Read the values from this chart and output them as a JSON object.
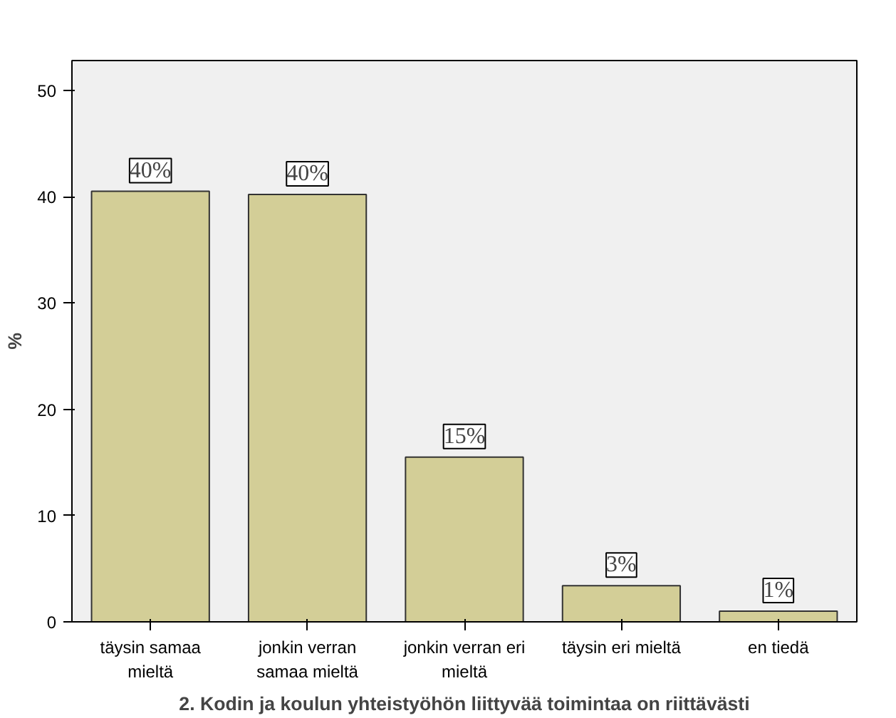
{
  "chart_data": {
    "type": "bar",
    "xlabel": "2. Kodin ja koulun yhteistyöhön liittyvää toimintaa on riittävästi",
    "ylabel": "%",
    "categories": [
      "täysin samaa mieltä",
      "jonkin verran samaa mieltä",
      "jonkin verran eri mieltä",
      "täysin eri mieltä",
      "en tiedä"
    ],
    "values": [
      40.5,
      40.2,
      15.5,
      3.4,
      1.0
    ],
    "value_labels": [
      "40%",
      "40%",
      "15%",
      "3%",
      "1%"
    ],
    "color": "#d3ce97",
    "ylim": [
      0,
      52.8
    ],
    "yticks": [
      0,
      10,
      20,
      30,
      40,
      50
    ],
    "grid": false
  }
}
